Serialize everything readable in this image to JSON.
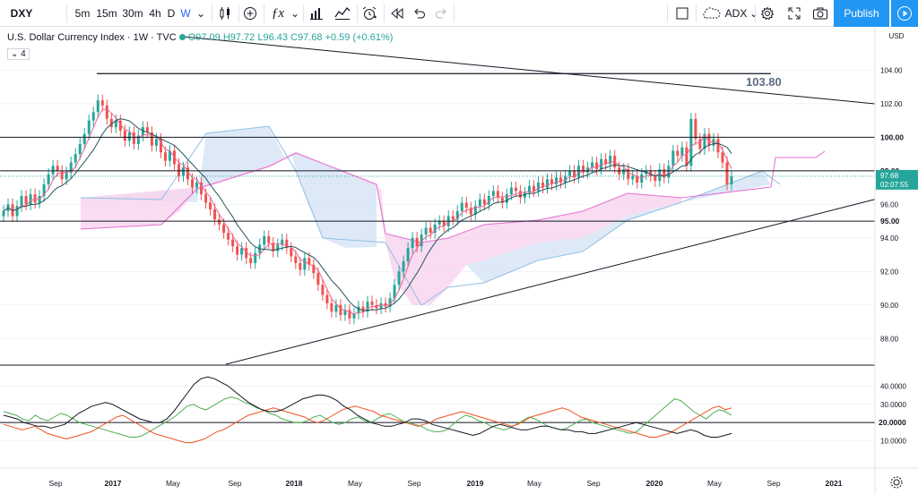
{
  "toolbar": {
    "symbol": "DXY",
    "intervals": [
      "5m",
      "15m",
      "30m",
      "4h",
      "D",
      "W"
    ],
    "active_interval": "W",
    "indicator_name": "ADX",
    "publish_label": "Publish"
  },
  "legend": {
    "title": "U.S. Dollar Currency Index · 1W · TVC",
    "ohlc": "O97.09 H97.72 L96.43 C97.68 +0.59 (+0.61%)",
    "collapse_count": "4"
  },
  "price_axis": {
    "currency": "USD",
    "ticks": [
      "104.00",
      "102.00",
      "100.00",
      "98.00",
      "96.00",
      "94.00",
      "92.00",
      "90.00",
      "88.00"
    ],
    "tick_values": [
      104,
      102,
      100,
      98,
      96,
      94,
      92,
      90,
      88
    ],
    "line_labels": [
      "100.00",
      "98.00",
      "95.00"
    ],
    "line_values": [
      100,
      98,
      95
    ],
    "current_price": "97.68",
    "countdown": "02:07:55",
    "annotation": "103.80"
  },
  "adx_axis": {
    "ticks": [
      "40.0000",
      "30.0000",
      "20.0000",
      "10.0000"
    ],
    "tick_values": [
      40,
      30,
      20,
      10
    ],
    "level_label": "20.0000"
  },
  "time_axis": [
    "Sep",
    "2017",
    "May",
    "Sep",
    "2018",
    "May",
    "Sep",
    "2019",
    "May",
    "Sep",
    "2020",
    "May",
    "Sep",
    "2021"
  ],
  "colors": {
    "up": "#26a69a",
    "down": "#ef5350",
    "kumo_bull": "#d6e4f5",
    "kumo_bear": "#f8d3ee",
    "span_a": "#90bfe6",
    "span_b": "#e36ed1",
    "tenkan": "#f06292",
    "kijun": "#26545f",
    "accent": "#2196f3"
  },
  "chart_data": {
    "type": "candlestick",
    "title": "U.S. Dollar Currency Index · 1W · TVC",
    "ylim": [
      87,
      106
    ],
    "closes": [
      95.6,
      96.0,
      95.3,
      95.9,
      96.5,
      96.0,
      96.6,
      96.1,
      96.5,
      97.2,
      97.8,
      98.3,
      98.0,
      97.5,
      97.9,
      98.5,
      99.0,
      99.6,
      100.2,
      101.0,
      101.5,
      102.2,
      101.9,
      101.1,
      100.6,
      101.0,
      100.4,
      99.8,
      100.3,
      99.6,
      100.1,
      100.6,
      100.3,
      99.5,
      99.9,
      99.1,
      98.6,
      99.2,
      98.4,
      97.7,
      98.2,
      97.5,
      97.0,
      97.3,
      96.6,
      96.1,
      95.7,
      95.1,
      94.8,
      94.3,
      93.9,
      93.5,
      93.0,
      93.4,
      92.8,
      92.5,
      93.1,
      93.6,
      94.1,
      93.7,
      93.2,
      93.6,
      93.9,
      93.4,
      92.9,
      92.5,
      92.1,
      92.8,
      92.4,
      91.9,
      91.2,
      90.6,
      90.1,
      89.6,
      90.0,
      89.4,
      89.7,
      89.2,
      89.5,
      89.9,
      89.6,
      90.2,
      90.0,
      89.8,
      90.1,
      89.9,
      90.4,
      91.2,
      92.0,
      92.6,
      93.4,
      94.0,
      93.5,
      94.2,
      94.6,
      94.3,
      94.8,
      95.0,
      94.7,
      95.3,
      95.1,
      95.6,
      96.1,
      95.8,
      95.4,
      95.9,
      96.3,
      96.0,
      96.5,
      96.8,
      96.4,
      96.1,
      96.6,
      97.0,
      96.8,
      96.4,
      96.7,
      97.1,
      96.8,
      97.3,
      97.0,
      97.5,
      97.2,
      97.6,
      97.3,
      97.7,
      98.0,
      97.6,
      98.3,
      97.9,
      98.2,
      98.5,
      98.1,
      98.7,
      98.4,
      98.9,
      98.2,
      97.8,
      98.1,
      97.5,
      97.7,
      97.3,
      97.8,
      98.0,
      97.7,
      97.4,
      98.1,
      97.6,
      98.3,
      99.2,
      98.9,
      99.4,
      98.3,
      101.1,
      99.9,
      99.3,
      100.2,
      99.5,
      99.9,
      99.1,
      98.5,
      97.2,
      97.68
    ],
    "adx": [
      24,
      23,
      22,
      20,
      19,
      18,
      18,
      17,
      18,
      19,
      22,
      25,
      27,
      29,
      30,
      31,
      30,
      28,
      26,
      24,
      22,
      21,
      20,
      20,
      22,
      26,
      31,
      36,
      41,
      44,
      45,
      44,
      42,
      40,
      37,
      34,
      31,
      29,
      27,
      26,
      26,
      27,
      29,
      31,
      33,
      34,
      35,
      35,
      34,
      32,
      29,
      27,
      24,
      22,
      20,
      19,
      18,
      18,
      19,
      20,
      22,
      22,
      21,
      19,
      18,
      17,
      16,
      15,
      14,
      13,
      14,
      16,
      18,
      19,
      18,
      17,
      16,
      16,
      17,
      18,
      18,
      17,
      16,
      16,
      15,
      15,
      14,
      14,
      15,
      16,
      17,
      18,
      19,
      20,
      19,
      18,
      17,
      16,
      15,
      14,
      15,
      16,
      15,
      13,
      12,
      12,
      13,
      14
    ],
    "plus_di": [
      26,
      25,
      24,
      22,
      21,
      24,
      22,
      21,
      23,
      25,
      24,
      22,
      20,
      19,
      18,
      17,
      16,
      15,
      14,
      13,
      12,
      12,
      13,
      15,
      17,
      19,
      21,
      23,
      26,
      29,
      30,
      28,
      27,
      29,
      31,
      33,
      34,
      33,
      31,
      30,
      28,
      27,
      25,
      24,
      22,
      21,
      20,
      20,
      21,
      23,
      24,
      22,
      20,
      19,
      20,
      22,
      23,
      21,
      20,
      22,
      24,
      25,
      23,
      21,
      20,
      19,
      18,
      16,
      15,
      15,
      16,
      19,
      22,
      24,
      23,
      21,
      20,
      18,
      17,
      16,
      17,
      19,
      21,
      23,
      22,
      20,
      18,
      17,
      16,
      17,
      19,
      21,
      22,
      20,
      19,
      18,
      17,
      16,
      15,
      14,
      15,
      18,
      21,
      24,
      27,
      30,
      33,
      32,
      29,
      26,
      24,
      22,
      25,
      27,
      26,
      24
    ],
    "minus_di": [
      19,
      18,
      17,
      16,
      17,
      18,
      16,
      14,
      13,
      12,
      11,
      12,
      13,
      14,
      15,
      17,
      19,
      21,
      23,
      24,
      22,
      20,
      18,
      16,
      14,
      13,
      12,
      11,
      10,
      9,
      9,
      10,
      11,
      13,
      15,
      16,
      18,
      20,
      22,
      24,
      25,
      26,
      27,
      28,
      27,
      26,
      25,
      24,
      23,
      21,
      20,
      21,
      23,
      25,
      27,
      28,
      29,
      28,
      27,
      26,
      24,
      23,
      22,
      21,
      20,
      19,
      18,
      19,
      20,
      22,
      23,
      24,
      25,
      26,
      25,
      24,
      23,
      22,
      21,
      20,
      19,
      18,
      19,
      21,
      23,
      24,
      25,
      26,
      27,
      28,
      27,
      25,
      23,
      22,
      21,
      20,
      19,
      18,
      17,
      16,
      15,
      14,
      13,
      12,
      12,
      13,
      14,
      16,
      18,
      20,
      22,
      24,
      26,
      28,
      29,
      27,
      28
    ]
  }
}
